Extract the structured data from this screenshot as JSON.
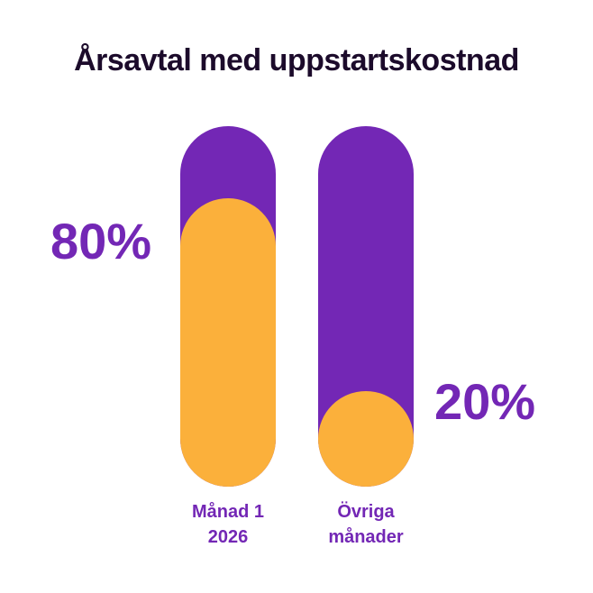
{
  "chart_data": {
    "type": "bar",
    "title": "Årsavtal med uppstartskostnad",
    "categories": [
      [
        "Månad 1",
        "2026"
      ],
      [
        "Övriga",
        "månader"
      ]
    ],
    "values": [
      80,
      20
    ],
    "value_labels": [
      "80%",
      "20%"
    ],
    "ylim": [
      0,
      100
    ],
    "colors": {
      "fill": "#fbb03b",
      "track": "#7327b5",
      "label": "#7327b5",
      "title": "#1c0b2b"
    }
  }
}
